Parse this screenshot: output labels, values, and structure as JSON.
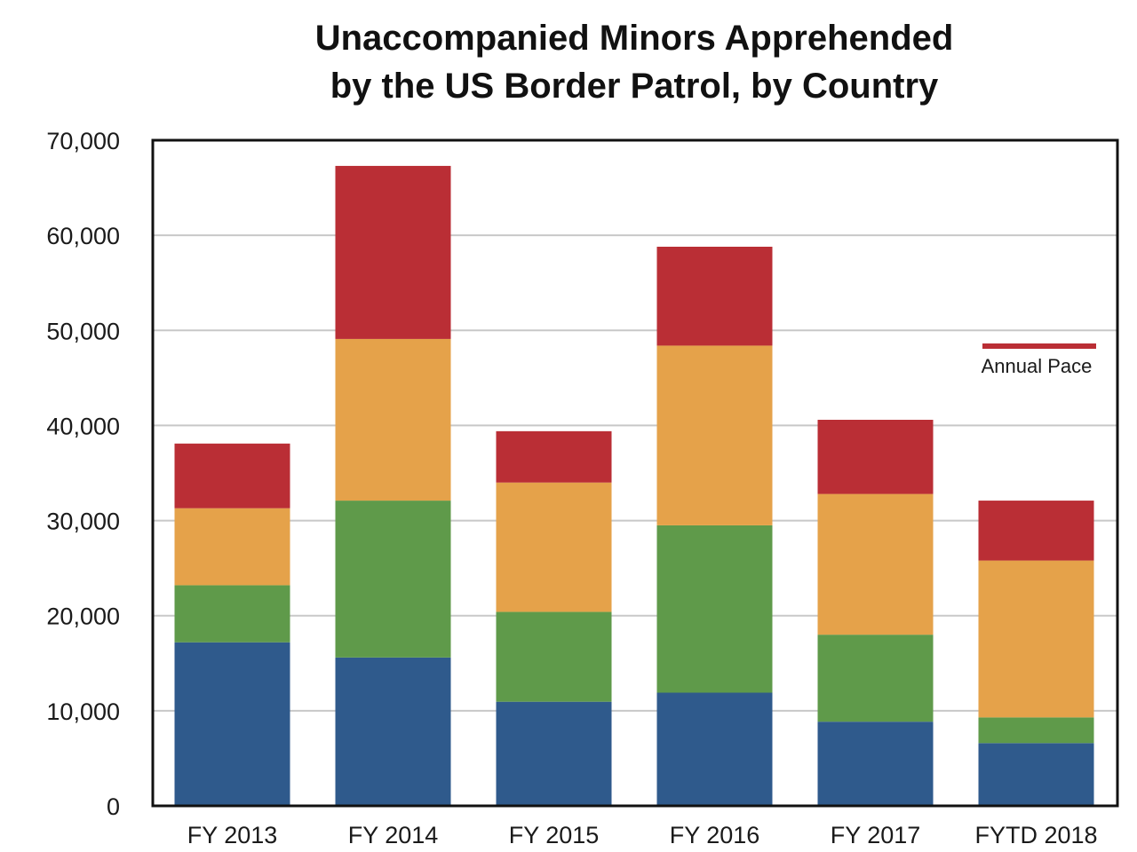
{
  "chart_data": {
    "type": "bar",
    "stacked": true,
    "title_lines": [
      "Unaccompanied Minors Apprehended",
      "by the US Border Patrol, by Country"
    ],
    "categories": [
      "FY 2013",
      "FY 2014",
      "FY 2015",
      "FY 2016",
      "FY 2017",
      "FYTD 2018"
    ],
    "series": [
      {
        "color": "#2f5a8c",
        "values": [
          17200,
          15600,
          10950,
          11900,
          8850,
          6600
        ]
      },
      {
        "color": "#5f9a4a",
        "values": [
          6000,
          16500,
          9450,
          17600,
          9150,
          2700
        ]
      },
      {
        "color": "#e5a24a",
        "values": [
          8100,
          17000,
          13600,
          18900,
          14800,
          16500
        ]
      },
      {
        "color": "#ba2e35",
        "values": [
          6800,
          18200,
          5400,
          10400,
          7800,
          6300
        ]
      }
    ],
    "ylim": [
      0,
      70000
    ],
    "yticks": [
      0,
      10000,
      20000,
      30000,
      40000,
      50000,
      60000,
      70000
    ],
    "ytick_labels": [
      "0",
      "10,000",
      "20,000",
      "30,000",
      "40,000",
      "50,000",
      "60,000",
      "70,000"
    ],
    "grid": true,
    "legend": {
      "label": "Annual Pace",
      "color": "#ba2e35",
      "position": "right"
    }
  }
}
